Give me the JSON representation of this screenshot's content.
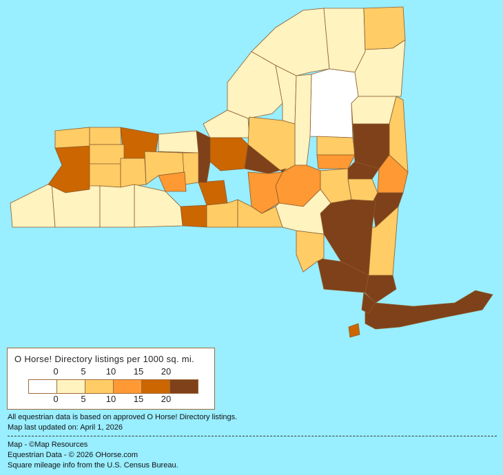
{
  "legend": {
    "title": "O Horse! Directory listings per 1000 sq. mi.",
    "ticks_top": [
      "0",
      "5",
      "10",
      "15",
      "20"
    ],
    "ticks_bottom": [
      "0",
      "5",
      "10",
      "15",
      "20"
    ],
    "colors": [
      "#FFFFFF",
      "#FFF3C0",
      "#FFCC66",
      "#FF9933",
      "#CC6600",
      "#7F4119"
    ]
  },
  "notes": {
    "basis": "All equestrian data is based on approved O Horse! Directory listings.",
    "updated": "Map last updated on: April 1, 2026",
    "map_credit": "Map - ©Map Resources",
    "data_credit": "Equestrian Data - © 2026 OHorse.com",
    "census_credit": "Square mileage info from the U.S. Census Bureau."
  },
  "map": {
    "background": "#99EEFF",
    "region_levels": [
      1,
      1,
      2,
      1,
      0,
      1,
      2,
      1,
      1,
      1,
      1,
      2,
      2,
      3,
      5,
      5,
      3,
      4,
      5,
      3,
      3,
      2,
      2,
      5,
      5,
      2,
      5,
      5,
      5,
      5,
      4,
      2,
      1,
      1,
      1,
      4,
      4,
      4,
      2,
      2,
      4,
      2,
      2,
      2,
      5,
      1,
      2,
      2,
      3,
      2,
      1,
      2
    ]
  }
}
